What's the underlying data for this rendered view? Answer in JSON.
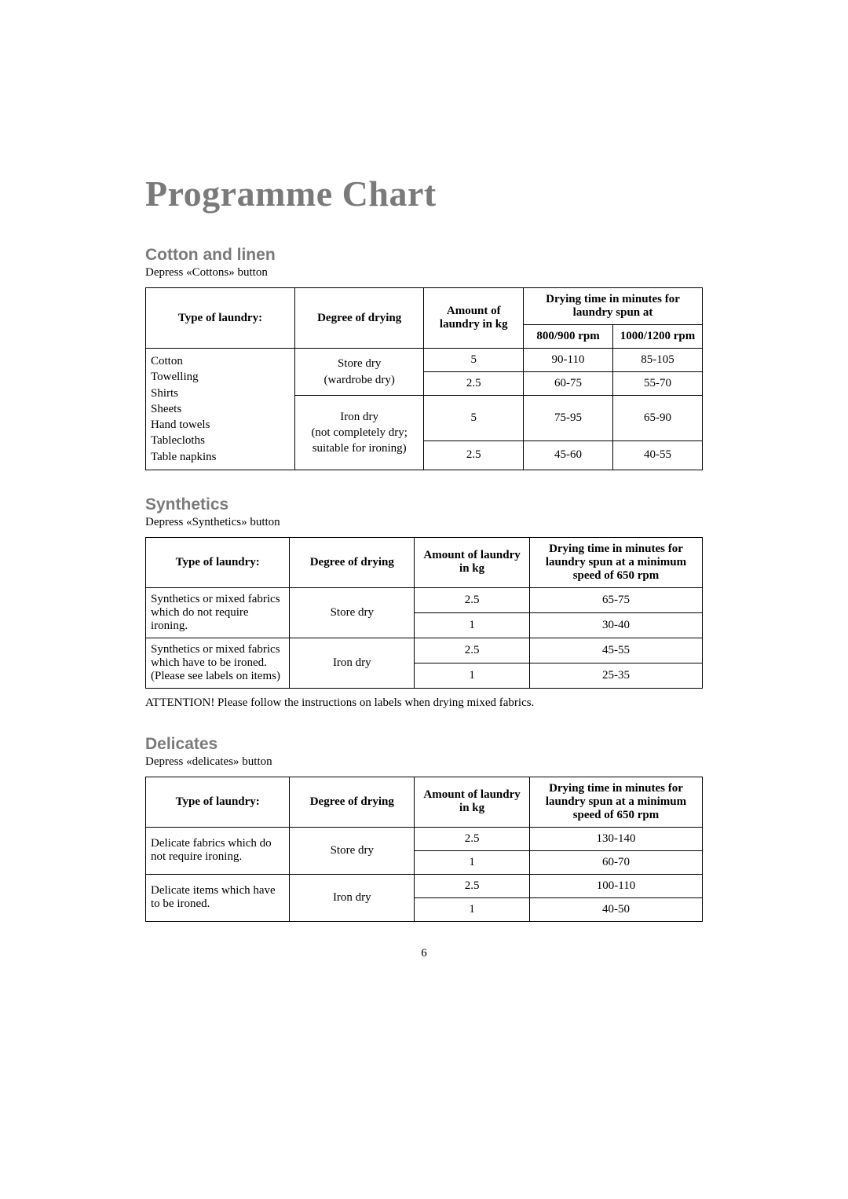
{
  "page": {
    "title": "Programme Chart",
    "number": "6"
  },
  "cotton": {
    "heading": "Cotton and linen",
    "subtitle": "Depress «Cottons» button",
    "columns": {
      "type": "Type of laundry:",
      "degree": "Degree of drying",
      "amount": "Amount of laundry in kg",
      "time_group": "Drying time in minutes for laundry spun at",
      "rpm1": "800/900 rpm",
      "rpm2": "1000/1200 rpm"
    },
    "col_widths": {
      "type": 150,
      "degree": 130,
      "amount": 100,
      "rpm1": 90,
      "rpm2": 90
    },
    "laundry_list": "Cotton\nTowelling\nShirts\nSheets\nHand towels\nTablecloths\nTable napkins",
    "degrees": {
      "store": "Store dry\n(wardrobe dry)",
      "iron": "Iron dry\n(not completely dry; suitable for ironing)"
    },
    "rows": [
      {
        "amount": "5",
        "rpm1": "90-110",
        "rpm2": "85-105"
      },
      {
        "amount": "2.5",
        "rpm1": "60-75",
        "rpm2": "55-70"
      },
      {
        "amount": "5",
        "rpm1": "75-95",
        "rpm2": "65-90"
      },
      {
        "amount": "2.5",
        "rpm1": "45-60",
        "rpm2": "40-55"
      }
    ]
  },
  "synthetics": {
    "heading": "Synthetics",
    "subtitle": "Depress «Synthetics» button",
    "columns": {
      "type": "Type of laundry:",
      "degree": "Degree of drying",
      "amount": "Amount of laundry in kg",
      "time": "Drying time in minutes for laundry spun at a minimum speed of 650 rpm"
    },
    "col_widths": {
      "type": 150,
      "degree": 130,
      "amount": 120,
      "time": 180
    },
    "groups": [
      {
        "laundry": "Synthetics or mixed fabrics which do not require ironing.",
        "degree": "Store dry",
        "rows": [
          {
            "amount": "2.5",
            "time": "65-75"
          },
          {
            "amount": "1",
            "time": "30-40"
          }
        ]
      },
      {
        "laundry": "Synthetics or mixed fabrics which have to be ironed. (Please see labels on items)",
        "degree": "Iron dry",
        "rows": [
          {
            "amount": "2.5",
            "time": "45-55"
          },
          {
            "amount": "1",
            "time": "25-35"
          }
        ]
      }
    ],
    "attention": "ATTENTION! Please follow the instructions on labels when drying mixed fabrics."
  },
  "delicates": {
    "heading": "Delicates",
    "subtitle": "Depress «delicates» button",
    "columns": {
      "type": "Type of laundry:",
      "degree": "Degree of drying",
      "amount": "Amount of laundry in kg",
      "time": "Drying time in minutes for laundry spun at a minimum speed of 650 rpm"
    },
    "col_widths": {
      "type": 150,
      "degree": 130,
      "amount": 120,
      "time": 180
    },
    "groups": [
      {
        "laundry": "Delicate fabrics which do not require ironing.",
        "degree": "Store dry",
        "rows": [
          {
            "amount": "2.5",
            "time": "130-140"
          },
          {
            "amount": "1",
            "time": "60-70"
          }
        ]
      },
      {
        "laundry": "Delicate items which have to be ironed.",
        "degree": "Iron dry",
        "rows": [
          {
            "amount": "2.5",
            "time": "100-110"
          },
          {
            "amount": "1",
            "time": "40-50"
          }
        ]
      }
    ]
  }
}
